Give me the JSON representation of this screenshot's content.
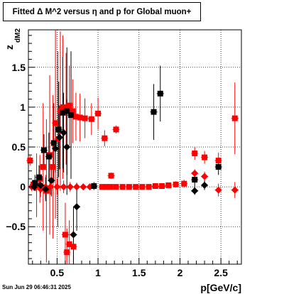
{
  "title": "Fitted Δ M^2 versus η and p for Global muon+",
  "timestamp": "Sun Jun 29 06:46:31 2025",
  "chart_data": {
    "type": "scatter",
    "title": "Fitted Δ M^2 versus η and p for Global muon+",
    "xlabel": "p[GeV/c]",
    "ylabel_main": "z",
    "ylabel_sub": "dM2",
    "xlim": [
      0.15,
      2.75
    ],
    "ylim": [
      -0.97,
      1.97
    ],
    "x_ticks": [
      0.5,
      1,
      1.5,
      2,
      2.5
    ],
    "x_tick_labels": [
      "0.5",
      "1",
      "1.5",
      "2",
      "2.5"
    ],
    "y_ticks": [
      -0.5,
      0,
      0.5,
      1,
      1.5
    ],
    "y_tick_labels": [
      "−0.5",
      "0",
      "0.5",
      "1",
      "1.5"
    ],
    "grid": true,
    "series": [
      {
        "marker": "square",
        "color": "#ff0000",
        "points": [
          {
            "x": 0.17,
            "y": 0.33,
            "err": 0.06
          },
          {
            "x": 0.21,
            "y": 0.03,
            "err": 0.05
          },
          {
            "x": 0.25,
            "y": 0.02,
            "err": 0.4
          },
          {
            "x": 0.29,
            "y": 0.1,
            "err": 0.3
          },
          {
            "x": 0.33,
            "y": 0.25,
            "err": 0.8
          },
          {
            "x": 0.37,
            "y": -0.05,
            "err": 0.9
          },
          {
            "x": 0.41,
            "y": 0.4,
            "err": 1.0
          },
          {
            "x": 0.45,
            "y": 0.25,
            "err": 0.9
          },
          {
            "x": 0.48,
            "y": 0.8,
            "err": 1.2
          },
          {
            "x": 0.51,
            "y": 0.6,
            "err": 1.1
          },
          {
            "x": 0.54,
            "y": 0.95,
            "err": 1.0
          },
          {
            "x": 0.57,
            "y": 1.0,
            "err": 0.9
          },
          {
            "x": 0.61,
            "y": 0.98,
            "err": 0.7
          },
          {
            "x": 0.65,
            "y": 1.02,
            "err": 0.5
          },
          {
            "x": 0.69,
            "y": 0.95,
            "err": 0.4
          },
          {
            "x": 0.73,
            "y": 0.88,
            "err": 0.3
          },
          {
            "x": 0.78,
            "y": 0.87,
            "err": 0.3
          },
          {
            "x": 0.84,
            "y": 0.86,
            "err": 0.25
          },
          {
            "x": 0.92,
            "y": 0.85,
            "err": 0.2
          },
          {
            "x": 1.0,
            "y": 0.92,
            "err": 0.2
          },
          {
            "x": 1.08,
            "y": 0.61,
            "err": 0.1
          },
          {
            "x": 1.16,
            "y": 0.14,
            "err": 0.04
          },
          {
            "x": 1.22,
            "y": 0.72,
            "err": 0.05
          },
          {
            "x": 0.6,
            "y": -0.6,
            "err": 0.4
          },
          {
            "x": 0.65,
            "y": -0.72,
            "err": 0.3
          },
          {
            "x": 0.7,
            "y": -0.75,
            "err": 0.2
          },
          {
            "x": 0.62,
            "y": -0.82,
            "err": 0.3
          },
          {
            "x": 1.05,
            "y": 0.0,
            "err": 0.03
          },
          {
            "x": 1.1,
            "y": 0.0,
            "err": 0.03
          },
          {
            "x": 1.15,
            "y": 0.0,
            "err": 0.03
          },
          {
            "x": 1.22,
            "y": 0.0,
            "err": 0.03
          },
          {
            "x": 1.3,
            "y": 0.0,
            "err": 0.03
          },
          {
            "x": 1.38,
            "y": 0.0,
            "err": 0.03
          },
          {
            "x": 1.46,
            "y": 0.0,
            "err": 0.03
          },
          {
            "x": 1.54,
            "y": 0.0,
            "err": 0.03
          },
          {
            "x": 1.62,
            "y": 0.0,
            "err": 0.03
          },
          {
            "x": 1.7,
            "y": 0.01,
            "err": 0.03
          },
          {
            "x": 1.78,
            "y": 0.01,
            "err": 0.03
          },
          {
            "x": 1.86,
            "y": 0.02,
            "err": 0.03
          },
          {
            "x": 1.95,
            "y": 0.03,
            "err": 0.04
          },
          {
            "x": 2.05,
            "y": 0.04,
            "err": 0.05
          },
          {
            "x": 2.18,
            "y": 0.42,
            "err": 0.08
          },
          {
            "x": 2.3,
            "y": 0.37,
            "err": 0.08
          },
          {
            "x": 2.47,
            "y": 0.33,
            "err": 0.1
          },
          {
            "x": 2.67,
            "y": 0.86,
            "err": 0.45
          }
        ]
      },
      {
        "marker": "diamond",
        "color": "#ff0000",
        "points": [
          {
            "x": 0.19,
            "y": 0.0,
            "err": 0.05
          },
          {
            "x": 0.24,
            "y": 0.0,
            "err": 0.05
          },
          {
            "x": 0.3,
            "y": -0.03,
            "err": 0.1
          },
          {
            "x": 0.36,
            "y": 0.0,
            "err": 0.15
          },
          {
            "x": 0.42,
            "y": 0.0,
            "err": 0.1
          },
          {
            "x": 0.5,
            "y": 0.0,
            "err": 0.1
          },
          {
            "x": 0.58,
            "y": 0.0,
            "err": 0.08
          },
          {
            "x": 0.66,
            "y": 0.0,
            "err": 0.06
          },
          {
            "x": 0.74,
            "y": 0.0,
            "err": 0.05
          },
          {
            "x": 0.82,
            "y": 0.0,
            "err": 0.04
          },
          {
            "x": 0.9,
            "y": 0.0,
            "err": 0.03
          },
          {
            "x": 2.18,
            "y": 0.17,
            "err": 0.05
          },
          {
            "x": 2.3,
            "y": 0.13,
            "err": 0.06
          },
          {
            "x": 2.47,
            "y": -0.04,
            "err": 0.08
          },
          {
            "x": 2.67,
            "y": -0.04,
            "err": 0.1
          }
        ]
      },
      {
        "marker": "square",
        "color": "#000000",
        "points": [
          {
            "x": 0.23,
            "y": 0.05,
            "err": 0.1
          },
          {
            "x": 0.28,
            "y": 0.12,
            "err": 0.15
          },
          {
            "x": 0.34,
            "y": 0.46,
            "err": 0.2
          },
          {
            "x": 0.4,
            "y": 0.38,
            "err": 0.3
          },
          {
            "x": 0.46,
            "y": 0.55,
            "err": 0.5
          },
          {
            "x": 0.52,
            "y": 0.72,
            "err": 0.6
          },
          {
            "x": 0.57,
            "y": 0.93,
            "err": 0.7
          },
          {
            "x": 0.62,
            "y": 0.95,
            "err": 0.8
          },
          {
            "x": 0.67,
            "y": 0.9,
            "err": 0.8
          },
          {
            "x": 1.68,
            "y": 0.94,
            "err": 0.35
          },
          {
            "x": 1.76,
            "y": 1.17,
            "err": 0.35
          },
          {
            "x": 2.18,
            "y": 0.09,
            "err": 0.1
          },
          {
            "x": 2.47,
            "y": 0.25,
            "err": 0.1
          },
          {
            "x": 0.95,
            "y": 0.01,
            "err": 0.05
          }
        ]
      },
      {
        "marker": "diamond",
        "color": "#000000",
        "points": [
          {
            "x": 0.22,
            "y": 0.0,
            "err": 0.05
          },
          {
            "x": 0.3,
            "y": 0.02,
            "err": 0.1
          },
          {
            "x": 0.36,
            "y": -0.03,
            "err": 0.15
          },
          {
            "x": 0.43,
            "y": 0.08,
            "err": 0.2
          },
          {
            "x": 0.48,
            "y": 0.48,
            "err": 0.3
          },
          {
            "x": 0.53,
            "y": 0.62,
            "err": 0.4
          },
          {
            "x": 0.58,
            "y": 0.68,
            "err": 0.5
          },
          {
            "x": 0.62,
            "y": 0.5,
            "err": 0.6
          },
          {
            "x": 0.74,
            "y": -0.25,
            "err": 0.3
          },
          {
            "x": 0.7,
            "y": -0.6,
            "err": 0.35
          },
          {
            "x": 2.18,
            "y": -0.05,
            "err": 0.05
          },
          {
            "x": 2.3,
            "y": 0.02,
            "err": 0.06
          }
        ]
      }
    ]
  }
}
